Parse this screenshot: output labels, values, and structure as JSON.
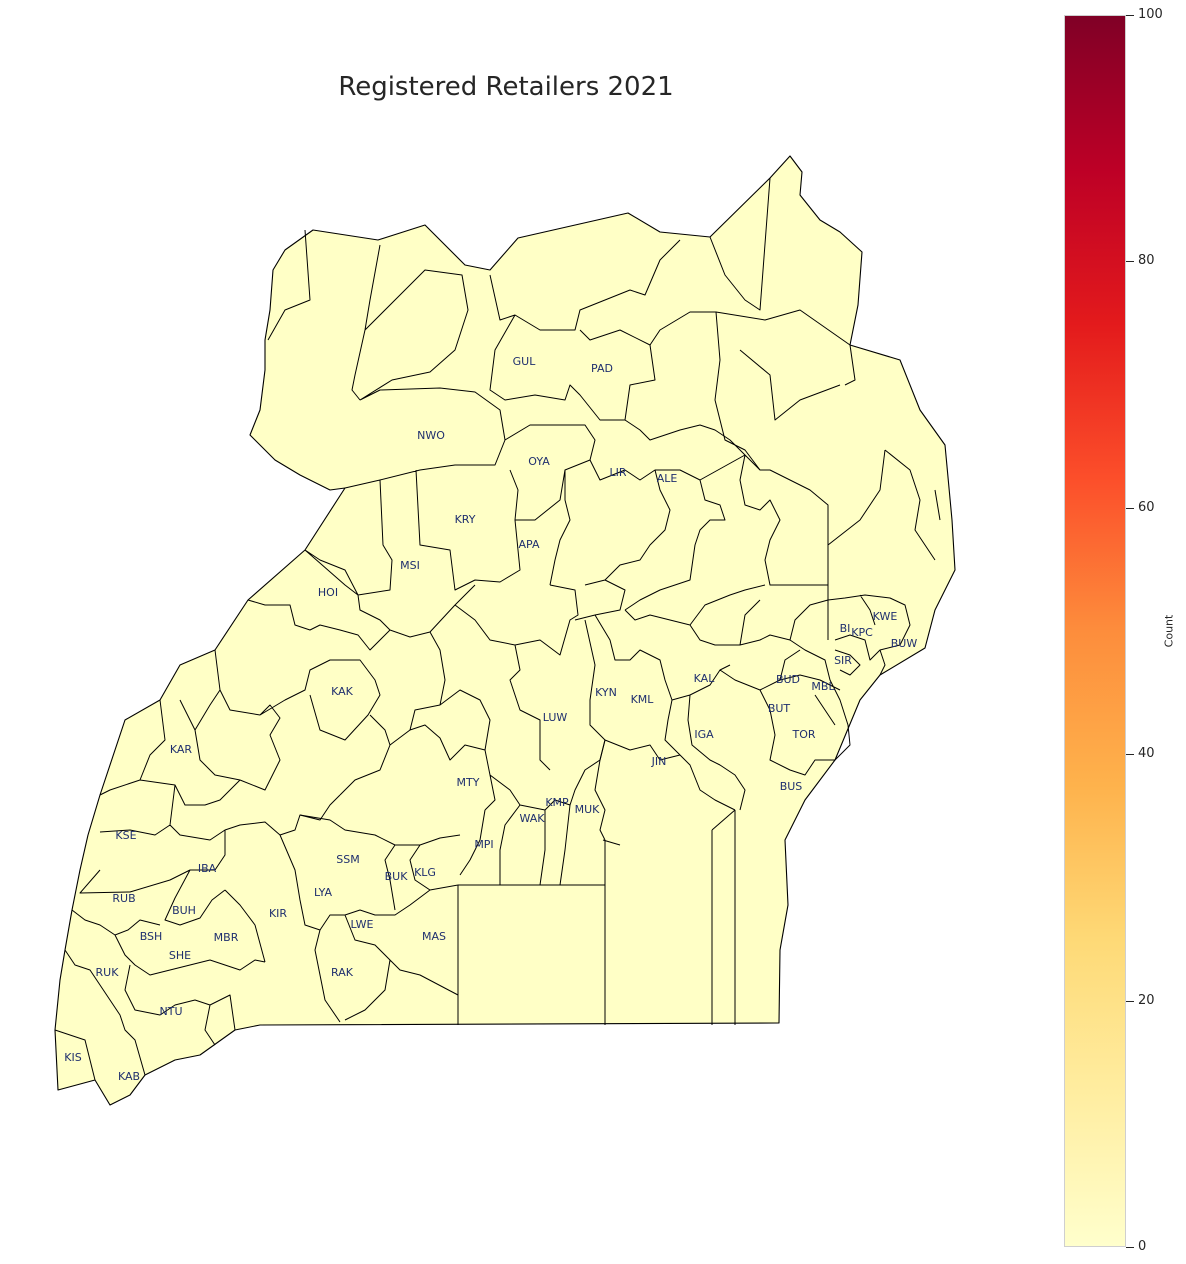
{
  "title": "Registered Retailers 2021",
  "colorbar": {
    "label": "Count",
    "min": 0,
    "max": 100,
    "ticks": [
      0,
      20,
      40,
      60,
      80,
      100
    ],
    "colormap": [
      "#ffffcc",
      "#ffeda0",
      "#fed976",
      "#feb24c",
      "#fd8d3c",
      "#fc4e2a",
      "#e31a1c",
      "#bd0026",
      "#800026"
    ]
  },
  "map": {
    "fill_color": "#ffffc6",
    "label_color": "#1f2f6e",
    "districts": [
      "GUL",
      "PAD",
      "NWO",
      "OYA",
      "LIR",
      "ALE",
      "KRY",
      "APA",
      "MSI",
      "HOI",
      "KAK",
      "KAR",
      "KSE",
      "LUW",
      "KYN",
      "KML",
      "KAL",
      "BUD",
      "MBL",
      "BUT",
      "IGA",
      "TOR",
      "JIN",
      "MTY",
      "KMP",
      "MUK",
      "WAK",
      "MPI",
      "SSM",
      "BUK",
      "KLG",
      "IBA",
      "RUB",
      "BUH",
      "LYA",
      "KIR",
      "LWE",
      "BSH",
      "MBR",
      "MAS",
      "SHE",
      "RUK",
      "RAK",
      "NTU",
      "KIS",
      "KAB",
      "KWE",
      "BI",
      "KPC",
      "BUW",
      "SIR",
      "BUS"
    ]
  }
}
